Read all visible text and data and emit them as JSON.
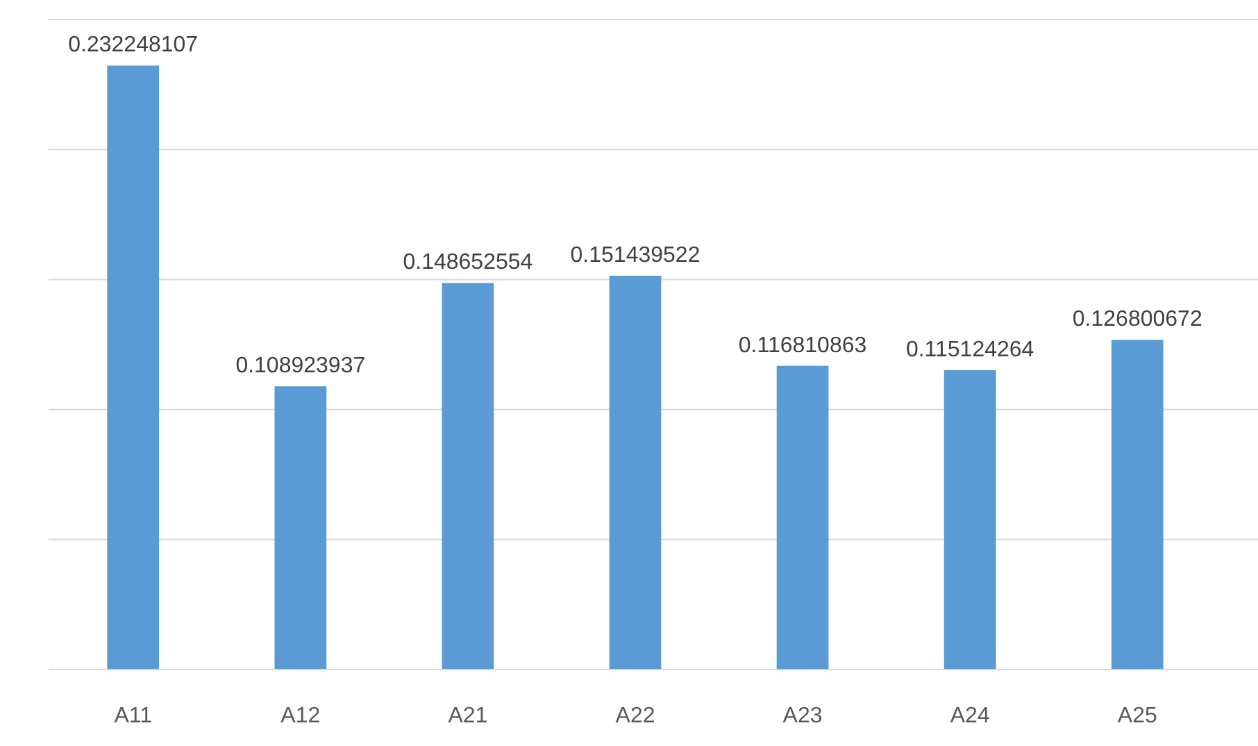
{
  "chart_data": {
    "type": "bar",
    "categories": [
      "A11",
      "A12",
      "A21",
      "A22",
      "A23",
      "A24",
      "A25"
    ],
    "values": [
      0.232248107,
      0.108923937,
      0.148652554,
      0.151439522,
      0.116810863,
      0.115124264,
      0.126800672
    ],
    "color": "#5b9bd5",
    "ylim": [
      0,
      0.25
    ],
    "yticks": [
      {
        "value": 0,
        "label": null
      },
      {
        "value": 0.05,
        "label": null
      },
      {
        "value": 0.1,
        "label": null
      },
      {
        "value": 0.15,
        "label": null
      },
      {
        "value": 0.2,
        "label": null
      },
      {
        "value": 0.25,
        "label": null
      }
    ],
    "tick_labels": "x",
    "grid": "y",
    "data_labels": true
  }
}
